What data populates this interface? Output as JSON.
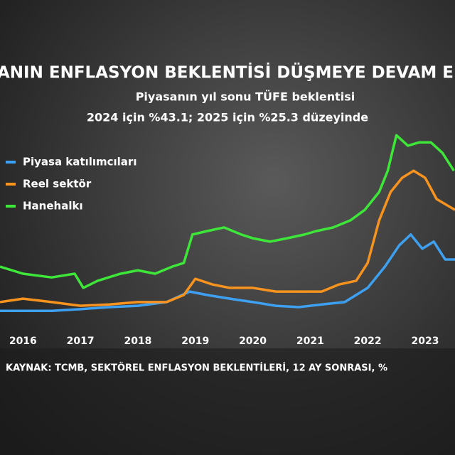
{
  "chart_data": {
    "type": "line",
    "title": "ANIN ENFLASYON BEKLENTİSİ DÜŞMEYE DEVAM E",
    "subtitle": [
      "Piyasanın yıl sonu TÜFE beklentisi",
      "2024 için %43.1; 2025 için %25.3 düzeyinde"
    ],
    "source": "KAYNAK: TCMB, SEKTÖREL ENFLASYON BEKLENTİLERİ, 12 AY SONRASI, %",
    "xlim": [
      2015.6,
      2023.52
    ],
    "xticks": [
      2016,
      2017,
      2018,
      2019,
      2020,
      2021,
      2022,
      2023
    ],
    "ylim": [
      0,
      80
    ],
    "legend": "top-left",
    "series": [
      {
        "name": "Piyasa katılımcıları",
        "color": "#3ea0f0",
        "x": [
          2015.6,
          2016,
          2016.5,
          2017,
          2017.5,
          2018,
          2018.5,
          2018.9,
          2019.2,
          2019.6,
          2020,
          2020.4,
          2020.8,
          2021.2,
          2021.6,
          2022,
          2022.3,
          2022.55,
          2022.75,
          2022.95,
          2023.15,
          2023.35,
          2023.52
        ],
        "values": [
          6.9,
          6.9,
          6.9,
          7.4,
          8.0,
          8.4,
          9.5,
          12.6,
          11.6,
          10.5,
          9.5,
          8.4,
          8.0,
          8.8,
          9.5,
          13.7,
          20.0,
          26.3,
          29.5,
          25.3,
          27.4,
          22.1,
          22.1
        ]
      },
      {
        "name": "Reel sektör",
        "color": "#f7931e",
        "x": [
          2015.6,
          2016,
          2016.5,
          2017,
          2017.5,
          2018,
          2018.5,
          2018.8,
          2019,
          2019.3,
          2019.6,
          2020,
          2020.4,
          2020.8,
          2021.2,
          2021.5,
          2021.8,
          2022,
          2022.2,
          2022.4,
          2022.6,
          2022.8,
          2023,
          2023.2,
          2023.52
        ],
        "values": [
          9.5,
          10.5,
          9.5,
          8.4,
          8.8,
          9.5,
          9.5,
          11.6,
          16.4,
          14.7,
          13.7,
          13.7,
          12.6,
          12.6,
          12.6,
          14.7,
          15.8,
          21.1,
          33.7,
          42.1,
          46.3,
          48.4,
          46.3,
          40.0,
          36.8
        ]
      },
      {
        "name": "Hanehalkı",
        "color": "#3ee63a",
        "x": [
          2015.6,
          2016,
          2016.5,
          2016.9,
          2017.05,
          2017.3,
          2017.7,
          2018,
          2018.3,
          2018.6,
          2018.8,
          2018.95,
          2019.2,
          2019.5,
          2019.8,
          2020,
          2020.3,
          2020.6,
          2020.9,
          2021.1,
          2021.4,
          2021.7,
          2021.95,
          2022.2,
          2022.35,
          2022.5,
          2022.7,
          2022.9,
          2023.1,
          2023.3,
          2023.5
        ],
        "values": [
          20.0,
          17.9,
          16.8,
          17.9,
          13.7,
          15.8,
          17.9,
          18.9,
          17.9,
          20.0,
          21.1,
          29.5,
          30.5,
          31.6,
          29.5,
          28.4,
          27.4,
          28.4,
          29.5,
          30.5,
          31.6,
          33.7,
          36.8,
          42.1,
          48.4,
          58.9,
          55.8,
          56.8,
          56.8,
          53.7,
          48.4
        ]
      }
    ]
  }
}
